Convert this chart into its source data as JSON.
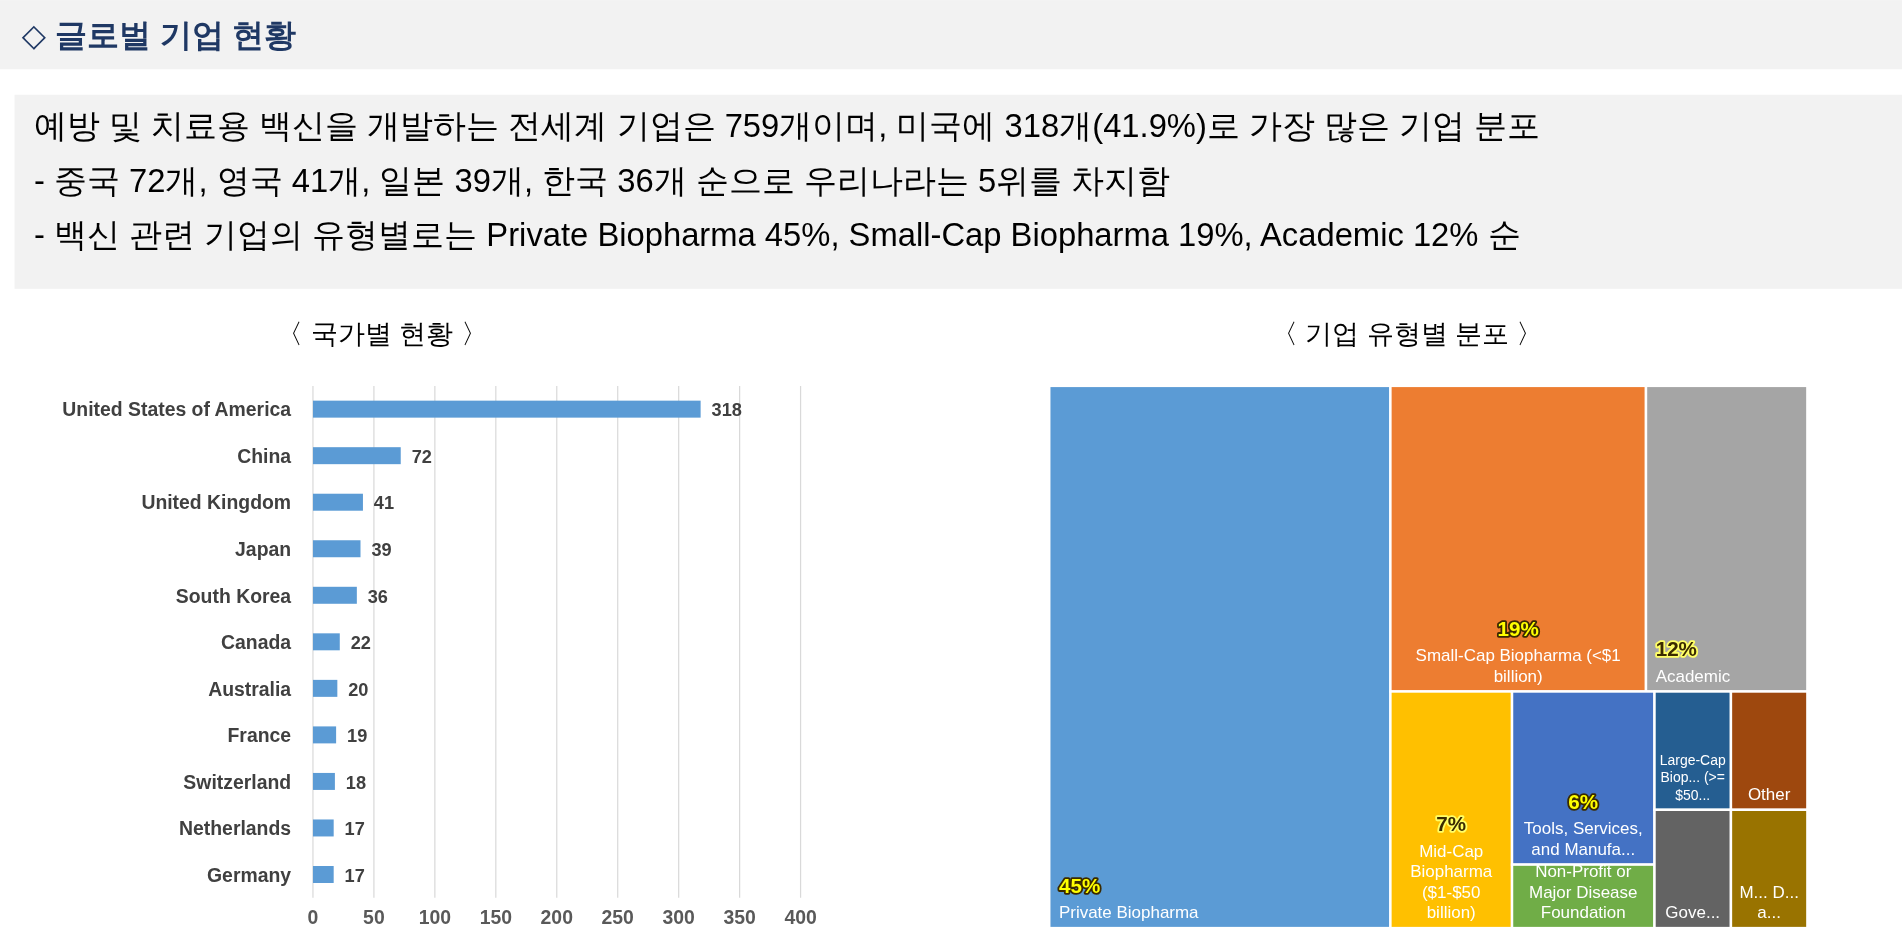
{
  "chart_data": [
    {
      "type": "other",
      "title": "◇ 글로벌 기업 현황",
      "annotations": [
        "예방 및 치료용 백신을 개발하는 전세계 기업은 759개이며, 미국에 318개(41.9%)로 가장 많은 기업 분포",
        "-  중국 72개, 영국 41개, 일본 39개, 한국 36개 순으로 우리나라는 5위를 차지함",
        "-  백신 관련 기업의 유형별로는 Private Biopharma 45%, Small-Cap Biopharma 19%, Academic 12% 순"
      ]
    },
    {
      "type": "bar",
      "orientation": "horizontal",
      "title": "〈 국가별 현황 〉",
      "categories": [
        "United States of America",
        "China",
        "United Kingdom",
        "Japan",
        "South Korea",
        "Canada",
        "Australia",
        "France",
        "Switzerland",
        "Netherlands",
        "Germany"
      ],
      "values": [
        318,
        72,
        41,
        39,
        36,
        22,
        20,
        19,
        18,
        17,
        17
      ],
      "color": "#5b9bd5",
      "data_labels": true,
      "xlim": [
        0,
        400
      ],
      "xticks": [
        0,
        50,
        100,
        150,
        200,
        250,
        300,
        350,
        400
      ],
      "grid": "x",
      "legend": false
    },
    {
      "type": "other",
      "title": "〈 기업 유형별 분포 〉",
      "categories": [
        "Private Biopharma",
        "Small-Cap Biopharma (<$1 billion)",
        "Academic",
        "Mid-Cap Biopharma ($1-$50 billion)",
        "Tools, Services, and Manufa...",
        "Non-Profit or Major Disease Foundation",
        "Large-Cap Biop... (>= $50...",
        "Other",
        "Gove...",
        "M... D... a..."
      ],
      "values": [
        45,
        19,
        12,
        7,
        6,
        null,
        null,
        null,
        null,
        null
      ],
      "value_labels": [
        "45%",
        "19%",
        "12%",
        "7%",
        "6%",
        null,
        null,
        null,
        null,
        null
      ],
      "colors": [
        "#5b9bd5",
        "#ed7d31",
        "#a5a5a5",
        "#ffc000",
        "#4472c4",
        "#70ad47",
        "#255e91",
        "#9e480e",
        "#636363",
        "#997300"
      ]
    }
  ]
}
